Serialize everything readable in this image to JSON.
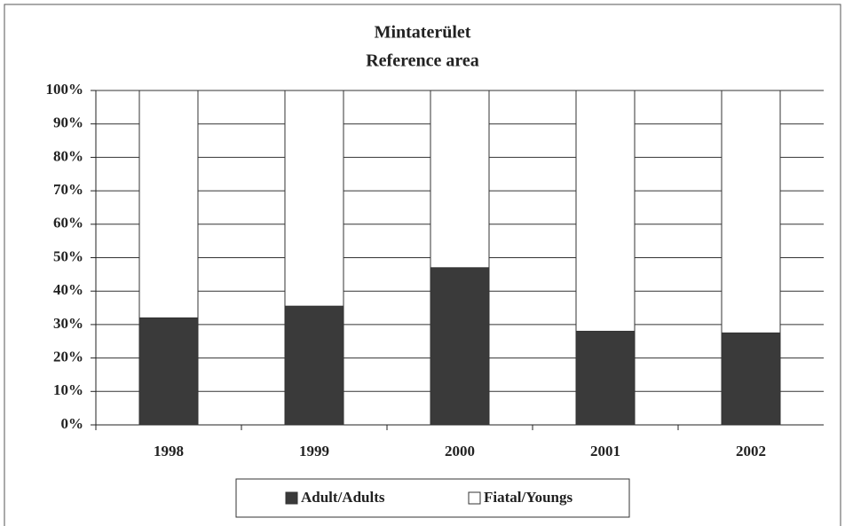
{
  "chart_data": {
    "type": "stacked_bar",
    "title": "Mintaterület",
    "subtitle": "Reference area",
    "categories": [
      "1998",
      "1999",
      "2000",
      "2001",
      "2002"
    ],
    "series": [
      {
        "name": "Adult/Adults",
        "color": "#3a3a3a",
        "values": [
          32,
          35.5,
          47,
          28,
          27.5
        ]
      },
      {
        "name": "Fiatal/Youngs",
        "color": "#ffffff",
        "values": [
          68,
          64.5,
          53,
          72,
          72.5
        ]
      }
    ],
    "ylim": [
      0,
      100
    ],
    "yticks": [
      {
        "value": 0,
        "label": "0%"
      },
      {
        "value": 10,
        "label": "10%"
      },
      {
        "value": 20,
        "label": "20%"
      },
      {
        "value": 30,
        "label": "30%"
      },
      {
        "value": 40,
        "label": "40%"
      },
      {
        "value": 50,
        "label": "50%"
      },
      {
        "value": 60,
        "label": "60%"
      },
      {
        "value": 70,
        "label": "70%"
      },
      {
        "value": 80,
        "label": "80%"
      },
      {
        "value": 90,
        "label": "90%"
      },
      {
        "value": 100,
        "label": "100%"
      }
    ],
    "grid": true,
    "legend": "bottom"
  }
}
